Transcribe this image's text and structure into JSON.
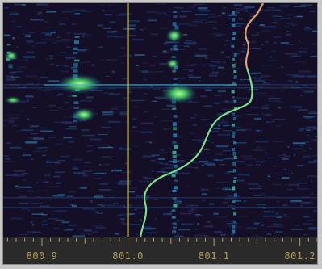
{
  "waterfall": {
    "axis_ticks": [
      {
        "label": "800.9",
        "value": 800.9
      },
      {
        "label": "801.0",
        "value": 801.0
      },
      {
        "label": "801.1",
        "value": 801.1
      },
      {
        "label": "801.2",
        "value": 801.2
      }
    ],
    "freq_range": [
      800.855,
      801.22
    ],
    "colors": {
      "background": "#120f22",
      "axis_bar": "#2a2a2a",
      "tick": "#b59a57",
      "marker_line": "#d8d070",
      "trace_green": "#7fe08a",
      "trace_orange": "#e0a070"
    }
  }
}
